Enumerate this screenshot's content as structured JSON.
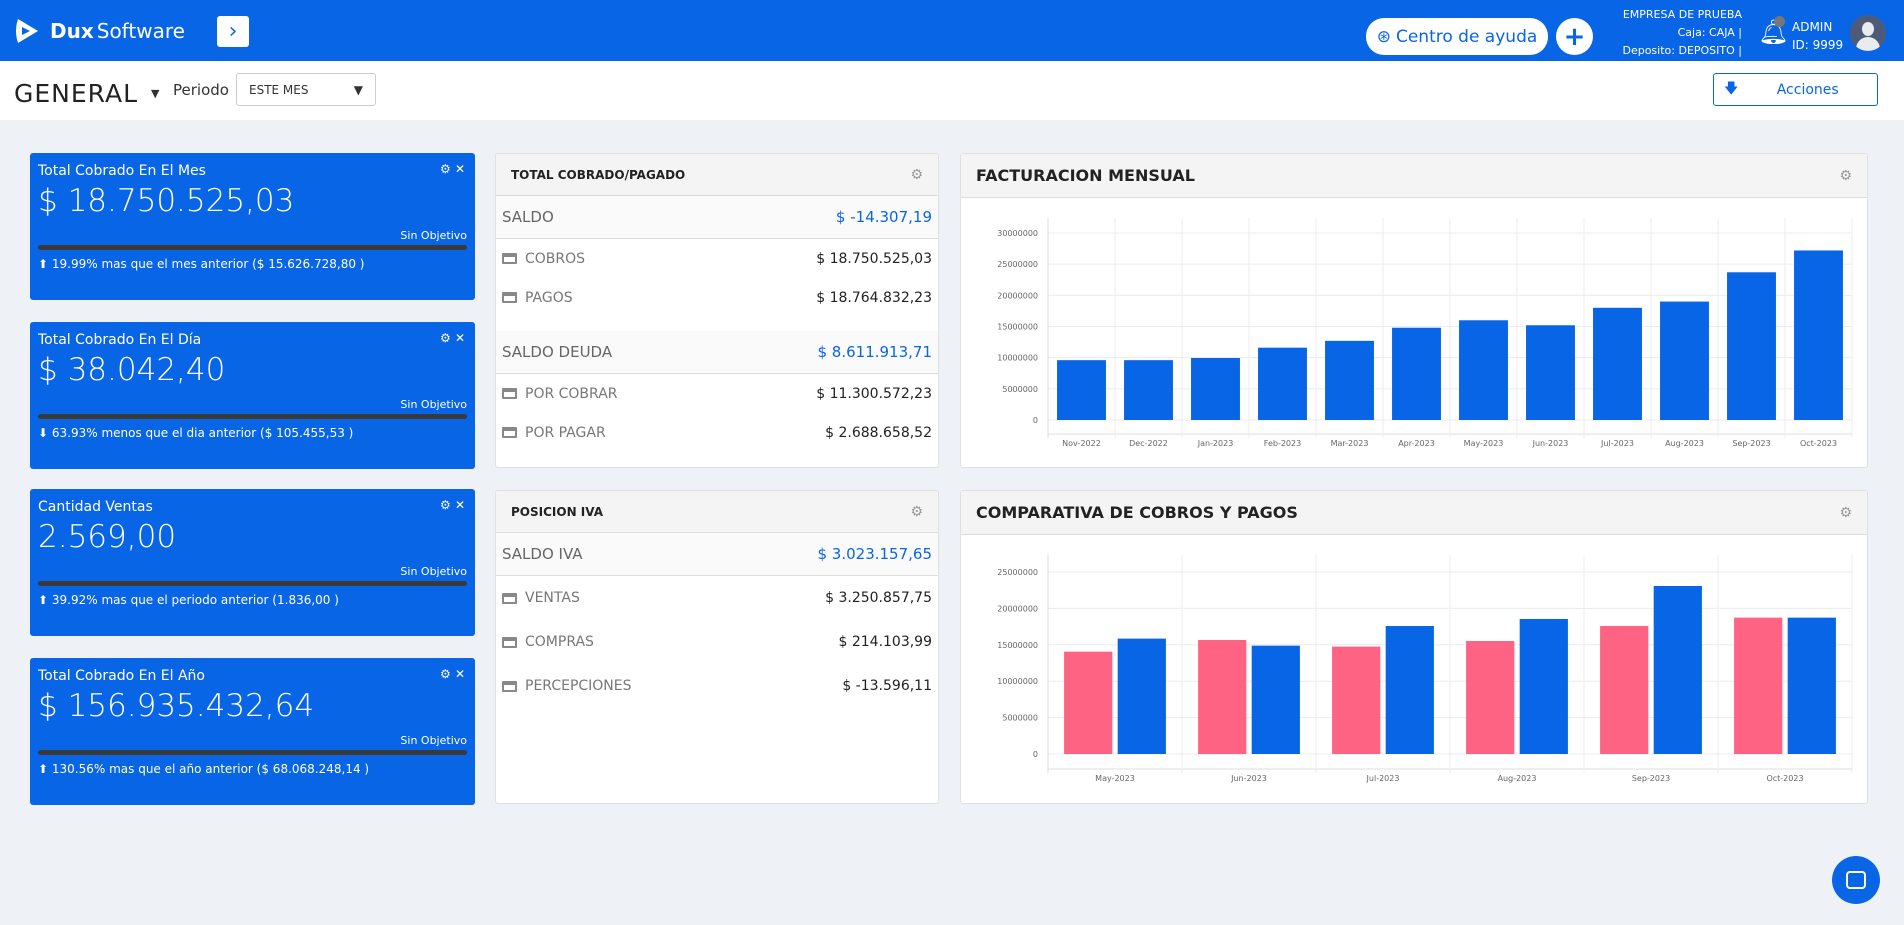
{
  "header": {
    "brand_bold": "Dux",
    "brand_light": "Software",
    "help_label": "Centro de ayuda",
    "company": "EMPRESA DE PRUEBA",
    "caja": "Caja: CAJA |",
    "deposito": "Deposito: DEPOSITO |",
    "user": "ADMIN",
    "user_id": "ID: 9999"
  },
  "subheader": {
    "dashboard": "GENERAL",
    "periodo_label": "Periodo",
    "periodo_value": "ESTE MES",
    "acciones": "Acciones"
  },
  "kpis": [
    {
      "title": "Total Cobrado En El Mes",
      "value": "$ 18.750.525,03",
      "objective": "Sin Objetivo",
      "progress": 0,
      "trend": "up",
      "comparison": "19.99% mas que el mes anterior ($ 15.626.728,80 )"
    },
    {
      "title": "Total Cobrado En El Día",
      "value": "$ 38.042,40",
      "objective": "Sin Objetivo",
      "progress": 0,
      "trend": "down",
      "comparison": "63.93% menos que el dia anterior ($ 105.455,53 )"
    },
    {
      "title": "Cantidad Ventas",
      "value": "2.569,00",
      "objective": "Sin Objetivo",
      "progress": 0,
      "trend": "up",
      "comparison": "39.92% mas que el periodo anterior (1.836,00 )"
    },
    {
      "title": "Total Cobrado En El Año",
      "value": "$ 156.935.432,64",
      "objective": "Sin Objetivo",
      "progress": 0,
      "trend": "up",
      "comparison": "130.56% mas que el año anterior ($ 68.068.248,14 )"
    }
  ],
  "cobrado_pagado": {
    "title": "TOTAL COBRADO/PAGADO",
    "saldo_label": "SALDO",
    "saldo_value": "$ -14.307,19",
    "cobros_label": "COBROS",
    "cobros_value": "$ 18.750.525,03",
    "pagos_label": "PAGOS",
    "pagos_value": "$ 18.764.832,23",
    "deuda_label": "SALDO DEUDA",
    "deuda_value": "$ 8.611.913,71",
    "por_cobrar_label": "POR COBRAR",
    "por_cobrar_value": "$ 11.300.572,23",
    "por_pagar_label": "POR PAGAR",
    "por_pagar_value": "$ 2.688.658,52"
  },
  "iva": {
    "title": "POSICION IVA",
    "saldo_label": "SALDO IVA",
    "saldo_value": "$ 3.023.157,65",
    "ventas_label": "VENTAS",
    "ventas_value": "$ 3.250.857,75",
    "compras_label": "COMPRAS",
    "compras_value": "$ 214.103,99",
    "percepciones_label": "PERCEPCIONES",
    "percepciones_value": "$ -13.596,11"
  },
  "chart_data": [
    {
      "type": "bar",
      "title": "FACTURACION MENSUAL",
      "categories": [
        "Nov-2022",
        "Dec-2022",
        "Jan-2023",
        "Feb-2023",
        "Mar-2023",
        "Apr-2023",
        "May-2023",
        "Jun-2023",
        "Jul-2023",
        "Aug-2023",
        "Sep-2023",
        "Oct-2023"
      ],
      "series": [
        {
          "name": "Facturacion",
          "color": "#0866e6",
          "values": [
            9600000,
            9600000,
            9950000,
            11600000,
            12700000,
            14800000,
            16000000,
            15200000,
            18000000,
            19000000,
            23700000,
            27200000
          ]
        }
      ],
      "ylim": [
        0,
        30000000
      ],
      "yticks": [
        0,
        5000000,
        10000000,
        15000000,
        20000000,
        25000000,
        30000000
      ],
      "grid": true
    },
    {
      "type": "bar",
      "title": "COMPARATIVA DE COBROS Y PAGOS",
      "categories": [
        "May-2023",
        "Jun-2023",
        "Jul-2023",
        "Aug-2023",
        "Sep-2023",
        "Oct-2023"
      ],
      "series": [
        {
          "name": "Pagos",
          "color": "#ff6384",
          "values": [
            14060000,
            15660000,
            14750000,
            15520000,
            17580000,
            18730000
          ]
        },
        {
          "name": "Cobros",
          "color": "#0866e6",
          "values": [
            15850000,
            14880000,
            17580000,
            18550000,
            23080000,
            18730000
          ]
        }
      ],
      "ylim": [
        0,
        25000000
      ],
      "yticks": [
        0,
        5000000,
        10000000,
        15000000,
        20000000,
        25000000
      ],
      "grid": true
    }
  ]
}
